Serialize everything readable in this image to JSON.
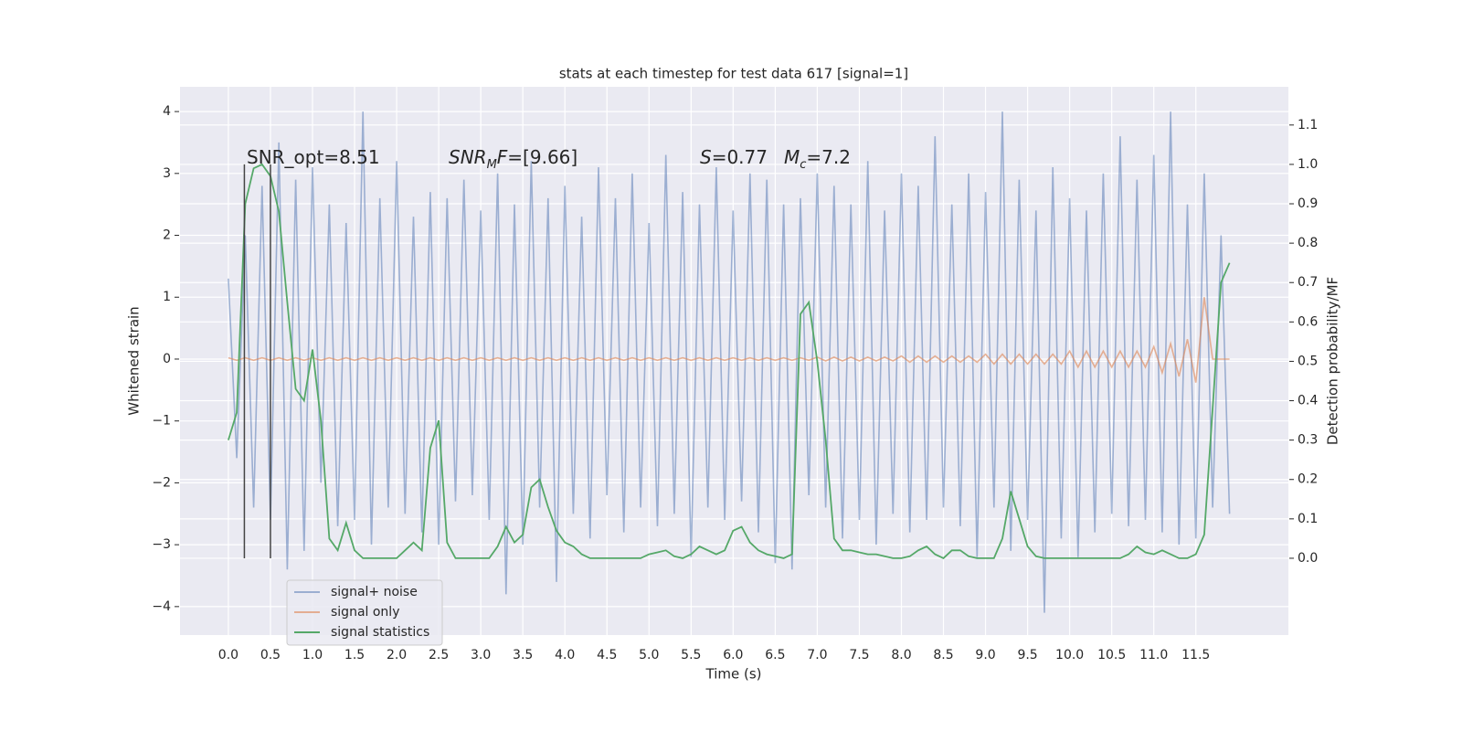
{
  "chart_data": {
    "type": "line",
    "title": "stats at each timestep for test data 617 [signal=1]",
    "xlabel": "Time (s)",
    "ylabel": "Whitened strain",
    "y2label": "Detection probability/MF",
    "annotations": [
      [
        {
          "text": "SNR_opt=8.51"
        }
      ],
      [
        {
          "text": "SNR",
          "italic": true
        },
        {
          "text": "M",
          "italic": true,
          "sub": true
        },
        {
          "text": "F",
          "italic": true
        },
        {
          "text": "=[9.66]"
        }
      ],
      [
        {
          "text": "S",
          "italic": true
        },
        {
          "text": "=0.77"
        }
      ],
      [
        {
          "text": "M",
          "italic": true
        },
        {
          "text": "c",
          "italic": true,
          "sub": true
        },
        {
          "text": "=7.2"
        }
      ]
    ],
    "xlim": [
      -0.575,
      12.6
    ],
    "ylim": [
      -4.46,
      4.4
    ],
    "y2lim": [
      -0.195,
      1.197
    ],
    "xticks": [
      {
        "value": 0,
        "label": "0.0"
      },
      {
        "value": 0.5,
        "label": "0.5"
      },
      {
        "value": 1,
        "label": "1.0"
      },
      {
        "value": 1.5,
        "label": "1.5"
      },
      {
        "value": 2,
        "label": "2.0"
      },
      {
        "value": 2.5,
        "label": "2.5"
      },
      {
        "value": 3,
        "label": "3.0"
      },
      {
        "value": 3.5,
        "label": "3.5"
      },
      {
        "value": 4,
        "label": "4.0"
      },
      {
        "value": 4.5,
        "label": "4.5"
      },
      {
        "value": 5,
        "label": "5.0"
      },
      {
        "value": 5.5,
        "label": "5.5"
      },
      {
        "value": 6,
        "label": "6.0"
      },
      {
        "value": 6.5,
        "label": "6.5"
      },
      {
        "value": 7,
        "label": "7.0"
      },
      {
        "value": 7.5,
        "label": "7.5"
      },
      {
        "value": 8,
        "label": "8.0"
      },
      {
        "value": 8.5,
        "label": "8.5"
      },
      {
        "value": 9,
        "label": "9.0"
      },
      {
        "value": 9.5,
        "label": "9.5"
      },
      {
        "value": 10,
        "label": "10.0"
      },
      {
        "value": 10.5,
        "label": "10.5"
      },
      {
        "value": 11,
        "label": "11.0"
      },
      {
        "value": 11.5,
        "label": "11.5"
      }
    ],
    "yticks": [
      {
        "value": -4,
        "label": "−4"
      },
      {
        "value": -3,
        "label": "−3"
      },
      {
        "value": -2,
        "label": "−2"
      },
      {
        "value": -1,
        "label": "−1"
      },
      0,
      1,
      2,
      3,
      4
    ],
    "y2ticks": [
      {
        "value": 0,
        "label": "0.0"
      },
      0.1,
      0.2,
      0.3,
      0.4,
      0.5,
      0.6,
      0.7,
      0.8,
      0.9,
      {
        "value": 1,
        "label": "1.0"
      },
      1.1
    ],
    "grid": true,
    "vlines": [
      0.19,
      0.5
    ],
    "vline_range": [
      0,
      1
    ],
    "x": [
      0.0,
      0.1,
      0.2,
      0.3,
      0.4,
      0.5,
      0.6,
      0.7,
      0.8,
      0.9,
      1.0,
      1.1,
      1.2,
      1.3,
      1.4,
      1.5,
      1.6,
      1.7,
      1.8,
      1.9,
      2.0,
      2.1,
      2.2,
      2.3,
      2.4,
      2.5,
      2.6,
      2.7,
      2.8,
      2.9,
      3.0,
      3.1,
      3.2,
      3.3,
      3.4,
      3.5,
      3.6,
      3.7,
      3.8,
      3.9,
      4.0,
      4.1,
      4.2,
      4.3,
      4.4,
      4.5,
      4.6,
      4.7,
      4.8,
      4.9,
      5.0,
      5.1,
      5.2,
      5.3,
      5.4,
      5.5,
      5.6,
      5.7,
      5.8,
      5.9,
      6.0,
      6.1,
      6.2,
      6.3,
      6.4,
      6.5,
      6.6,
      6.7,
      6.8,
      6.9,
      7.0,
      7.1,
      7.2,
      7.3,
      7.4,
      7.5,
      7.6,
      7.7,
      7.8,
      7.9,
      8.0,
      8.1,
      8.2,
      8.3,
      8.4,
      8.5,
      8.6,
      8.7,
      8.8,
      8.9,
      9.0,
      9.1,
      9.2,
      9.3,
      9.4,
      9.5,
      9.6,
      9.7,
      9.8,
      9.9,
      10.0,
      10.1,
      10.2,
      10.3,
      10.4,
      10.5,
      10.6,
      10.7,
      10.8,
      10.9,
      11.0,
      11.1,
      11.2,
      11.3,
      11.4,
      11.5,
      11.6,
      11.7,
      11.8,
      11.9
    ],
    "series": [
      {
        "name": "signal+ noise",
        "color": "#4c72b0",
        "opacity": 0.5,
        "values": [
          1.3,
          -1.6,
          2.0,
          -2.4,
          2.8,
          -2.6,
          3.5,
          -3.4,
          2.9,
          -3.1,
          3.1,
          -2.0,
          2.5,
          -2.7,
          2.2,
          -2.6,
          4.0,
          -3.0,
          2.6,
          -2.4,
          3.2,
          -2.5,
          2.3,
          -2.8,
          2.7,
          -3.0,
          2.6,
          -2.3,
          2.9,
          -2.2,
          2.4,
          -2.6,
          3.0,
          -3.8,
          2.5,
          -3.0,
          3.2,
          -2.4,
          2.6,
          -3.6,
          2.8,
          -2.5,
          2.3,
          -2.9,
          3.1,
          -2.2,
          2.6,
          -2.8,
          3.0,
          -2.4,
          2.2,
          -2.7,
          3.3,
          -2.5,
          2.7,
          -3.2,
          2.5,
          -2.4,
          3.1,
          -2.6,
          2.4,
          -2.3,
          3.0,
          -2.8,
          2.9,
          -3.3,
          2.5,
          -3.4,
          2.6,
          -2.2,
          3.0,
          -2.4,
          2.8,
          -2.9,
          2.5,
          -2.6,
          3.2,
          -3.0,
          2.4,
          -2.5,
          3.0,
          -2.8,
          2.8,
          -2.6,
          3.6,
          -2.4,
          2.5,
          -2.7,
          3.0,
          -3.2,
          2.7,
          -2.4,
          4.0,
          -3.1,
          2.9,
          -2.6,
          2.4,
          -4.1,
          3.1,
          -2.9,
          2.6,
          -3.2,
          2.4,
          -2.8,
          3.0,
          -2.5,
          3.6,
          -2.7,
          2.9,
          -2.6,
          3.3,
          -2.8,
          4.0,
          -3.0,
          2.5,
          -2.9,
          3.0,
          -2.4,
          2.0,
          -2.5
        ]
      },
      {
        "name": "signal only",
        "color": "#dd8452",
        "opacity": 0.6,
        "values": [
          0.02,
          -0.02,
          0.02,
          -0.02,
          0.02,
          -0.02,
          0.02,
          -0.02,
          0.02,
          -0.02,
          0.02,
          -0.02,
          0.02,
          -0.02,
          0.02,
          -0.02,
          0.02,
          -0.02,
          0.02,
          -0.02,
          0.02,
          -0.02,
          0.02,
          -0.02,
          0.02,
          -0.02,
          0.02,
          -0.02,
          0.02,
          -0.02,
          0.02,
          -0.02,
          0.02,
          -0.02,
          0.02,
          -0.02,
          0.02,
          -0.02,
          0.02,
          -0.02,
          0.02,
          -0.02,
          0.02,
          -0.02,
          0.02,
          -0.02,
          0.02,
          -0.02,
          0.02,
          -0.02,
          0.02,
          -0.02,
          0.02,
          -0.02,
          0.02,
          -0.02,
          0.02,
          -0.02,
          0.02,
          -0.02,
          0.02,
          -0.02,
          0.02,
          -0.02,
          0.02,
          -0.02,
          0.02,
          -0.02,
          0.02,
          -0.02,
          0.03,
          -0.03,
          0.03,
          -0.03,
          0.03,
          -0.03,
          0.03,
          -0.03,
          0.03,
          -0.03,
          0.05,
          -0.05,
          0.05,
          -0.05,
          0.05,
          -0.05,
          0.05,
          -0.05,
          0.05,
          -0.05,
          0.08,
          -0.08,
          0.08,
          -0.08,
          0.08,
          -0.08,
          0.08,
          -0.08,
          0.08,
          -0.08,
          0.13,
          -0.13,
          0.13,
          -0.13,
          0.13,
          -0.13,
          0.13,
          -0.13,
          0.13,
          -0.13,
          0.2,
          -0.22,
          0.25,
          -0.28,
          0.32,
          -0.38,
          1.0,
          0,
          0,
          0
        ]
      },
      {
        "name": "signal statistics",
        "color": "#55a868",
        "opacity": 1,
        "axis": "y2",
        "values": [
          0.3,
          0.37,
          0.9,
          0.99,
          1.0,
          0.97,
          0.88,
          0.65,
          0.43,
          0.4,
          0.53,
          0.35,
          0.05,
          0.02,
          0.09,
          0.02,
          0.0,
          0.0,
          0.0,
          0.0,
          0.0,
          0.02,
          0.04,
          0.02,
          0.28,
          0.35,
          0.04,
          0.0,
          0.0,
          0.0,
          0.0,
          0.0,
          0.03,
          0.08,
          0.04,
          0.06,
          0.18,
          0.2,
          0.13,
          0.07,
          0.04,
          0.03,
          0.01,
          0.0,
          0.0,
          0.0,
          0.0,
          0.0,
          0.0,
          0.0,
          0.01,
          0.015,
          0.02,
          0.005,
          0.0,
          0.01,
          0.03,
          0.02,
          0.01,
          0.02,
          0.07,
          0.08,
          0.04,
          0.02,
          0.01,
          0.005,
          0.0,
          0.01,
          0.62,
          0.65,
          0.5,
          0.3,
          0.05,
          0.02,
          0.02,
          0.015,
          0.01,
          0.01,
          0.005,
          0.0,
          0.0,
          0.005,
          0.02,
          0.03,
          0.01,
          0.0,
          0.02,
          0.02,
          0.005,
          0.0,
          0.0,
          0.0,
          0.05,
          0.17,
          0.1,
          0.03,
          0.005,
          0.0,
          0.0,
          0.0,
          0.0,
          0.0,
          0.0,
          0.0,
          0.0,
          0.0,
          0.0,
          0.01,
          0.03,
          0.015,
          0.01,
          0.02,
          0.01,
          0.0,
          0.0,
          0.01,
          0.06,
          0.38,
          0.7,
          0.75
        ]
      }
    ]
  }
}
